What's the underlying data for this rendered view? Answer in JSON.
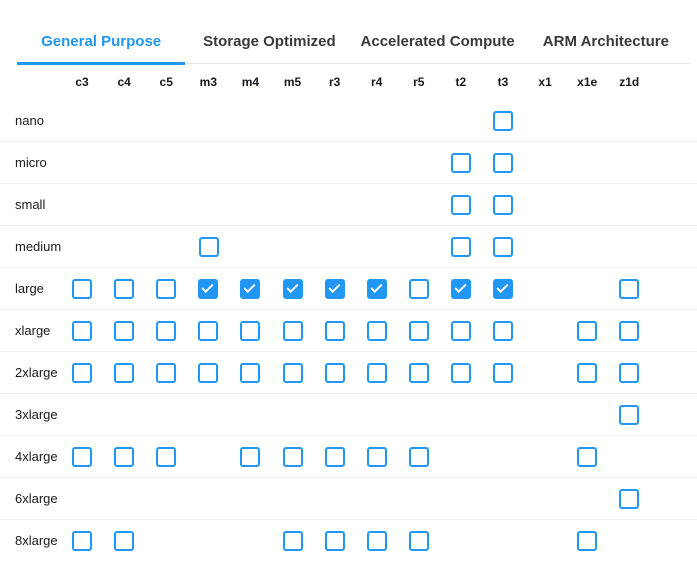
{
  "tabs": [
    {
      "label": "General Purpose",
      "active": true
    },
    {
      "label": "Storage Optimized",
      "active": false
    },
    {
      "label": "Accelerated Compute",
      "active": false
    },
    {
      "label": "ARM Architecture",
      "active": false
    }
  ],
  "matrix": {
    "columns": [
      "c3",
      "c4",
      "c5",
      "m3",
      "m4",
      "m5",
      "r3",
      "r4",
      "r5",
      "t2",
      "t3",
      "x1",
      "x1e",
      "z1d"
    ],
    "rows": [
      {
        "label": "nano",
        "cells": [
          "none",
          "none",
          "none",
          "none",
          "none",
          "none",
          "none",
          "none",
          "none",
          "none",
          "unchecked",
          "none",
          "none",
          "none"
        ]
      },
      {
        "label": "micro",
        "cells": [
          "none",
          "none",
          "none",
          "none",
          "none",
          "none",
          "none",
          "none",
          "none",
          "unchecked",
          "unchecked",
          "none",
          "none",
          "none"
        ]
      },
      {
        "label": "small",
        "cells": [
          "none",
          "none",
          "none",
          "none",
          "none",
          "none",
          "none",
          "none",
          "none",
          "unchecked",
          "unchecked",
          "none",
          "none",
          "none"
        ]
      },
      {
        "label": "medium",
        "cells": [
          "none",
          "none",
          "none",
          "unchecked",
          "none",
          "none",
          "none",
          "none",
          "none",
          "unchecked",
          "unchecked",
          "none",
          "none",
          "none"
        ]
      },
      {
        "label": "large",
        "cells": [
          "unchecked",
          "unchecked",
          "unchecked",
          "checked",
          "checked",
          "checked",
          "checked",
          "checked",
          "unchecked",
          "checked",
          "checked",
          "none",
          "none",
          "unchecked"
        ]
      },
      {
        "label": "xlarge",
        "cells": [
          "unchecked",
          "unchecked",
          "unchecked",
          "unchecked",
          "unchecked",
          "unchecked",
          "unchecked",
          "unchecked",
          "unchecked",
          "unchecked",
          "unchecked",
          "none",
          "unchecked",
          "unchecked"
        ]
      },
      {
        "label": "2xlarge",
        "cells": [
          "unchecked",
          "unchecked",
          "unchecked",
          "unchecked",
          "unchecked",
          "unchecked",
          "unchecked",
          "unchecked",
          "unchecked",
          "unchecked",
          "unchecked",
          "none",
          "unchecked",
          "unchecked"
        ]
      },
      {
        "label": "3xlarge",
        "cells": [
          "none",
          "none",
          "none",
          "none",
          "none",
          "none",
          "none",
          "none",
          "none",
          "none",
          "none",
          "none",
          "none",
          "unchecked"
        ]
      },
      {
        "label": "4xlarge",
        "cells": [
          "unchecked",
          "unchecked",
          "unchecked",
          "none",
          "unchecked",
          "unchecked",
          "unchecked",
          "unchecked",
          "unchecked",
          "none",
          "none",
          "none",
          "unchecked",
          "none"
        ]
      },
      {
        "label": "6xlarge",
        "cells": [
          "none",
          "none",
          "none",
          "none",
          "none",
          "none",
          "none",
          "none",
          "none",
          "none",
          "none",
          "none",
          "none",
          "unchecked"
        ]
      },
      {
        "label": "8xlarge",
        "cells": [
          "unchecked",
          "unchecked",
          "none",
          "none",
          "none",
          "unchecked",
          "unchecked",
          "unchecked",
          "unchecked",
          "none",
          "none",
          "none",
          "unchecked",
          "none"
        ]
      }
    ]
  },
  "colors": {
    "accent": "#2196F3",
    "tab_inactive": "#3a3a3a",
    "separator": "#efefef",
    "header_text": "#16191f"
  }
}
